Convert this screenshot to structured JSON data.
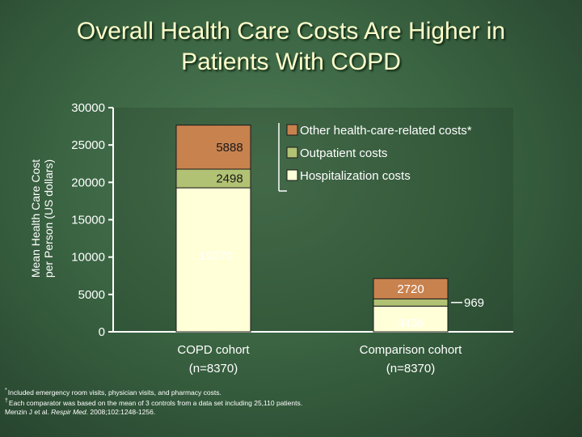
{
  "title_line1": "Overall Health Care Costs Are Higher in",
  "title_line2": "Patients With COPD",
  "colors": {
    "hosp": "#ffffd8",
    "outpt": "#b2c274",
    "other": "#c8824e",
    "bg": "#3a6442",
    "text": "#ffffff"
  },
  "chart_data": {
    "type": "bar",
    "stacked": true,
    "ylabel_line1": "Mean Health Care Cost",
    "ylabel_line2": "per Person (US dollars)",
    "ylim": [
      0,
      30000
    ],
    "yticks": [
      0,
      5000,
      10000,
      15000,
      20000,
      25000,
      30000
    ],
    "ytick_labels": [
      "0",
      "5000",
      "10000",
      "15000",
      "20000",
      "25000",
      "30000"
    ],
    "categories": [
      {
        "line1": "COPD cohort",
        "line2": "(n=8370)"
      },
      {
        "line1": "Comparison cohort",
        "line2": "(n=8370)"
      }
    ],
    "series": [
      {
        "name": "Hospitalization costs",
        "color_key": "hosp",
        "values": [
          19270,
          3436
        ],
        "labels": [
          "19270",
          "3436"
        ]
      },
      {
        "name": "Outpatient costs",
        "color_key": "outpt",
        "values": [
          2498,
          969
        ],
        "labels": [
          "2498",
          "969"
        ]
      },
      {
        "name": "Other health-care-related costs*",
        "color_key": "other",
        "values": [
          5888,
          2720
        ],
        "labels": [
          "5888",
          "2720"
        ]
      }
    ],
    "legend_position": "top-right"
  },
  "footnotes": {
    "note1_mark": "*",
    "note1": "Included emergency room visits, physician visits, and pharmacy costs.",
    "note2_mark": "†",
    "note2": "Each comparator was based on the mean of 3 controls from a data set including 25,110 patients.",
    "citation_pre": "Menzin J et al. ",
    "citation_journal": "Respir Med",
    "citation_post": ". 2008;102:1248-1256."
  }
}
